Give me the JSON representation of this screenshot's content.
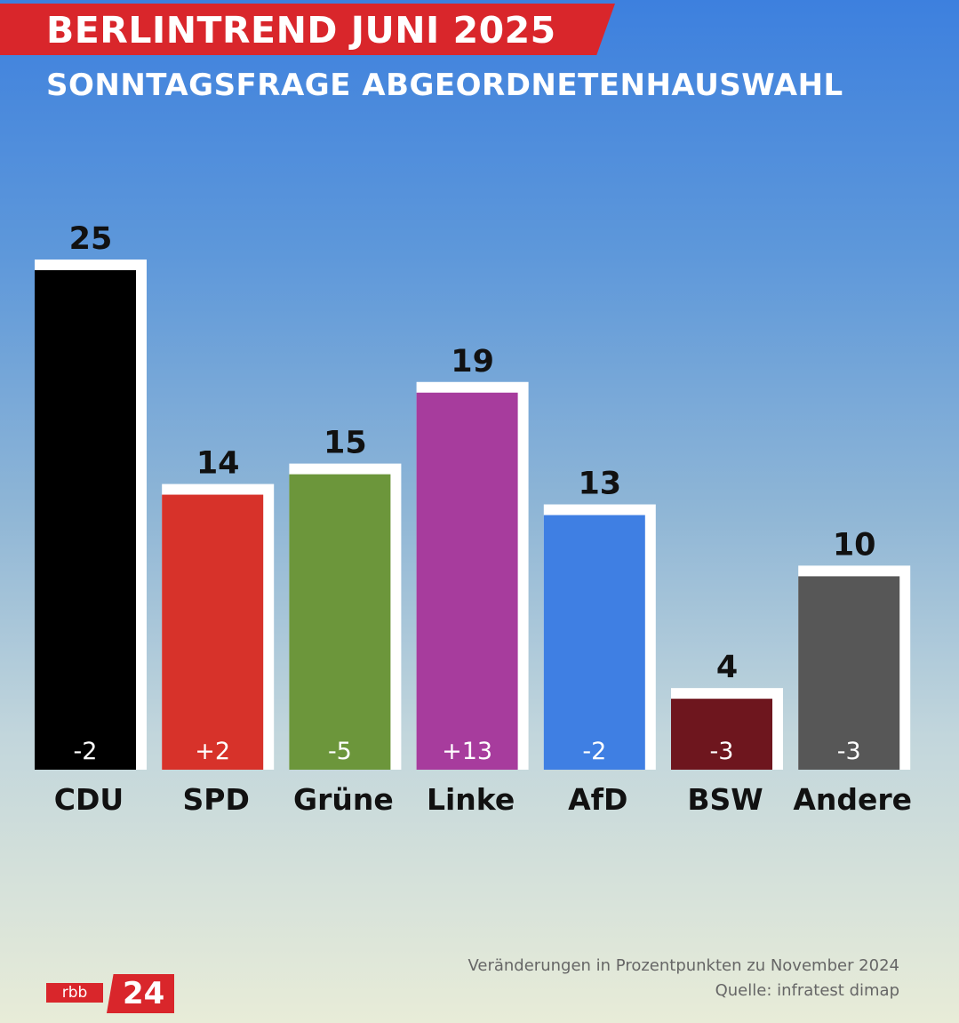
{
  "header": {
    "title": "BERLINTREND JUNI 2025",
    "subtitle": "SONNTAGSFRAGE ABGEORDNETENHAUSWAHL"
  },
  "chart_data": {
    "type": "bar",
    "title": "BERLINTREND JUNI 2025",
    "subtitle": "SONNTAGSFRAGE ABGEORDNETENHAUSWAHL",
    "categories": [
      "CDU",
      "SPD",
      "Grüne",
      "Linke",
      "AfD",
      "BSW",
      "Andere"
    ],
    "values": [
      25,
      14,
      15,
      19,
      13,
      4,
      10
    ],
    "change_labels": [
      "-2",
      "+2",
      "-5",
      "+13",
      "-2",
      "-3",
      "-3"
    ],
    "colors": [
      "#000000",
      "#d7322a",
      "#6c963b",
      "#a73c9d",
      "#3f7fe3",
      "#6e161e",
      "#575757"
    ],
    "ylim": [
      0,
      25
    ],
    "grid": false,
    "legend": "none"
  },
  "footer": {
    "note": "Veränderungen in Prozentpunkten zu November 2024",
    "source": "Quelle: infratest dimap",
    "logo_rbb": "rbb",
    "logo_24": "24"
  }
}
